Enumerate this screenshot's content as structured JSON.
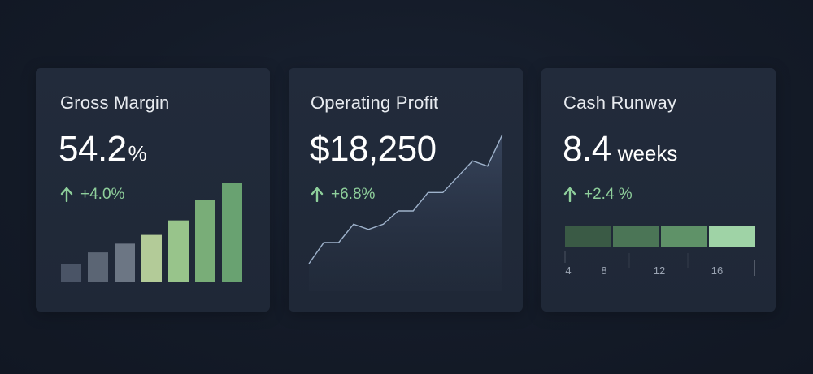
{
  "cards": [
    {
      "title": "Gross Margin",
      "value": "54.2",
      "unit": "%",
      "delta": "+4.0%",
      "chart_data": {
        "type": "bar",
        "values": [
          3,
          5,
          6.5,
          8,
          10.5,
          14,
          17
        ],
        "colors": [
          "#4a5466",
          "#5b6574",
          "#6c7684",
          "#b3cb98",
          "#98c48b",
          "#79ad78",
          "#69a271"
        ]
      }
    },
    {
      "title": "Operating Profit",
      "value": "$18,250",
      "delta": "+6.8%",
      "chart_data": {
        "type": "area",
        "values": [
          0,
          4,
          4,
          7.5,
          6.5,
          7.5,
          10,
          10,
          13.5,
          13.5,
          16.5,
          19.5,
          18.5,
          24.5
        ],
        "line_color": "#9fb3cc"
      }
    },
    {
      "title": "Cash Runway",
      "value": "8.4",
      "unit": "weeks",
      "delta": "+2.4 %",
      "segments": [
        "#3a5a45",
        "#4b7556",
        "#5f9268",
        "#9fd3a6"
      ],
      "ticks": [
        "4",
        "8",
        "12",
        "16"
      ]
    }
  ],
  "colors": {
    "accent_green": "#8ecf9b",
    "card_bg": "#222b3b",
    "page_bg": "#151c29"
  },
  "icons": {
    "delta": "arrow-up-icon"
  }
}
